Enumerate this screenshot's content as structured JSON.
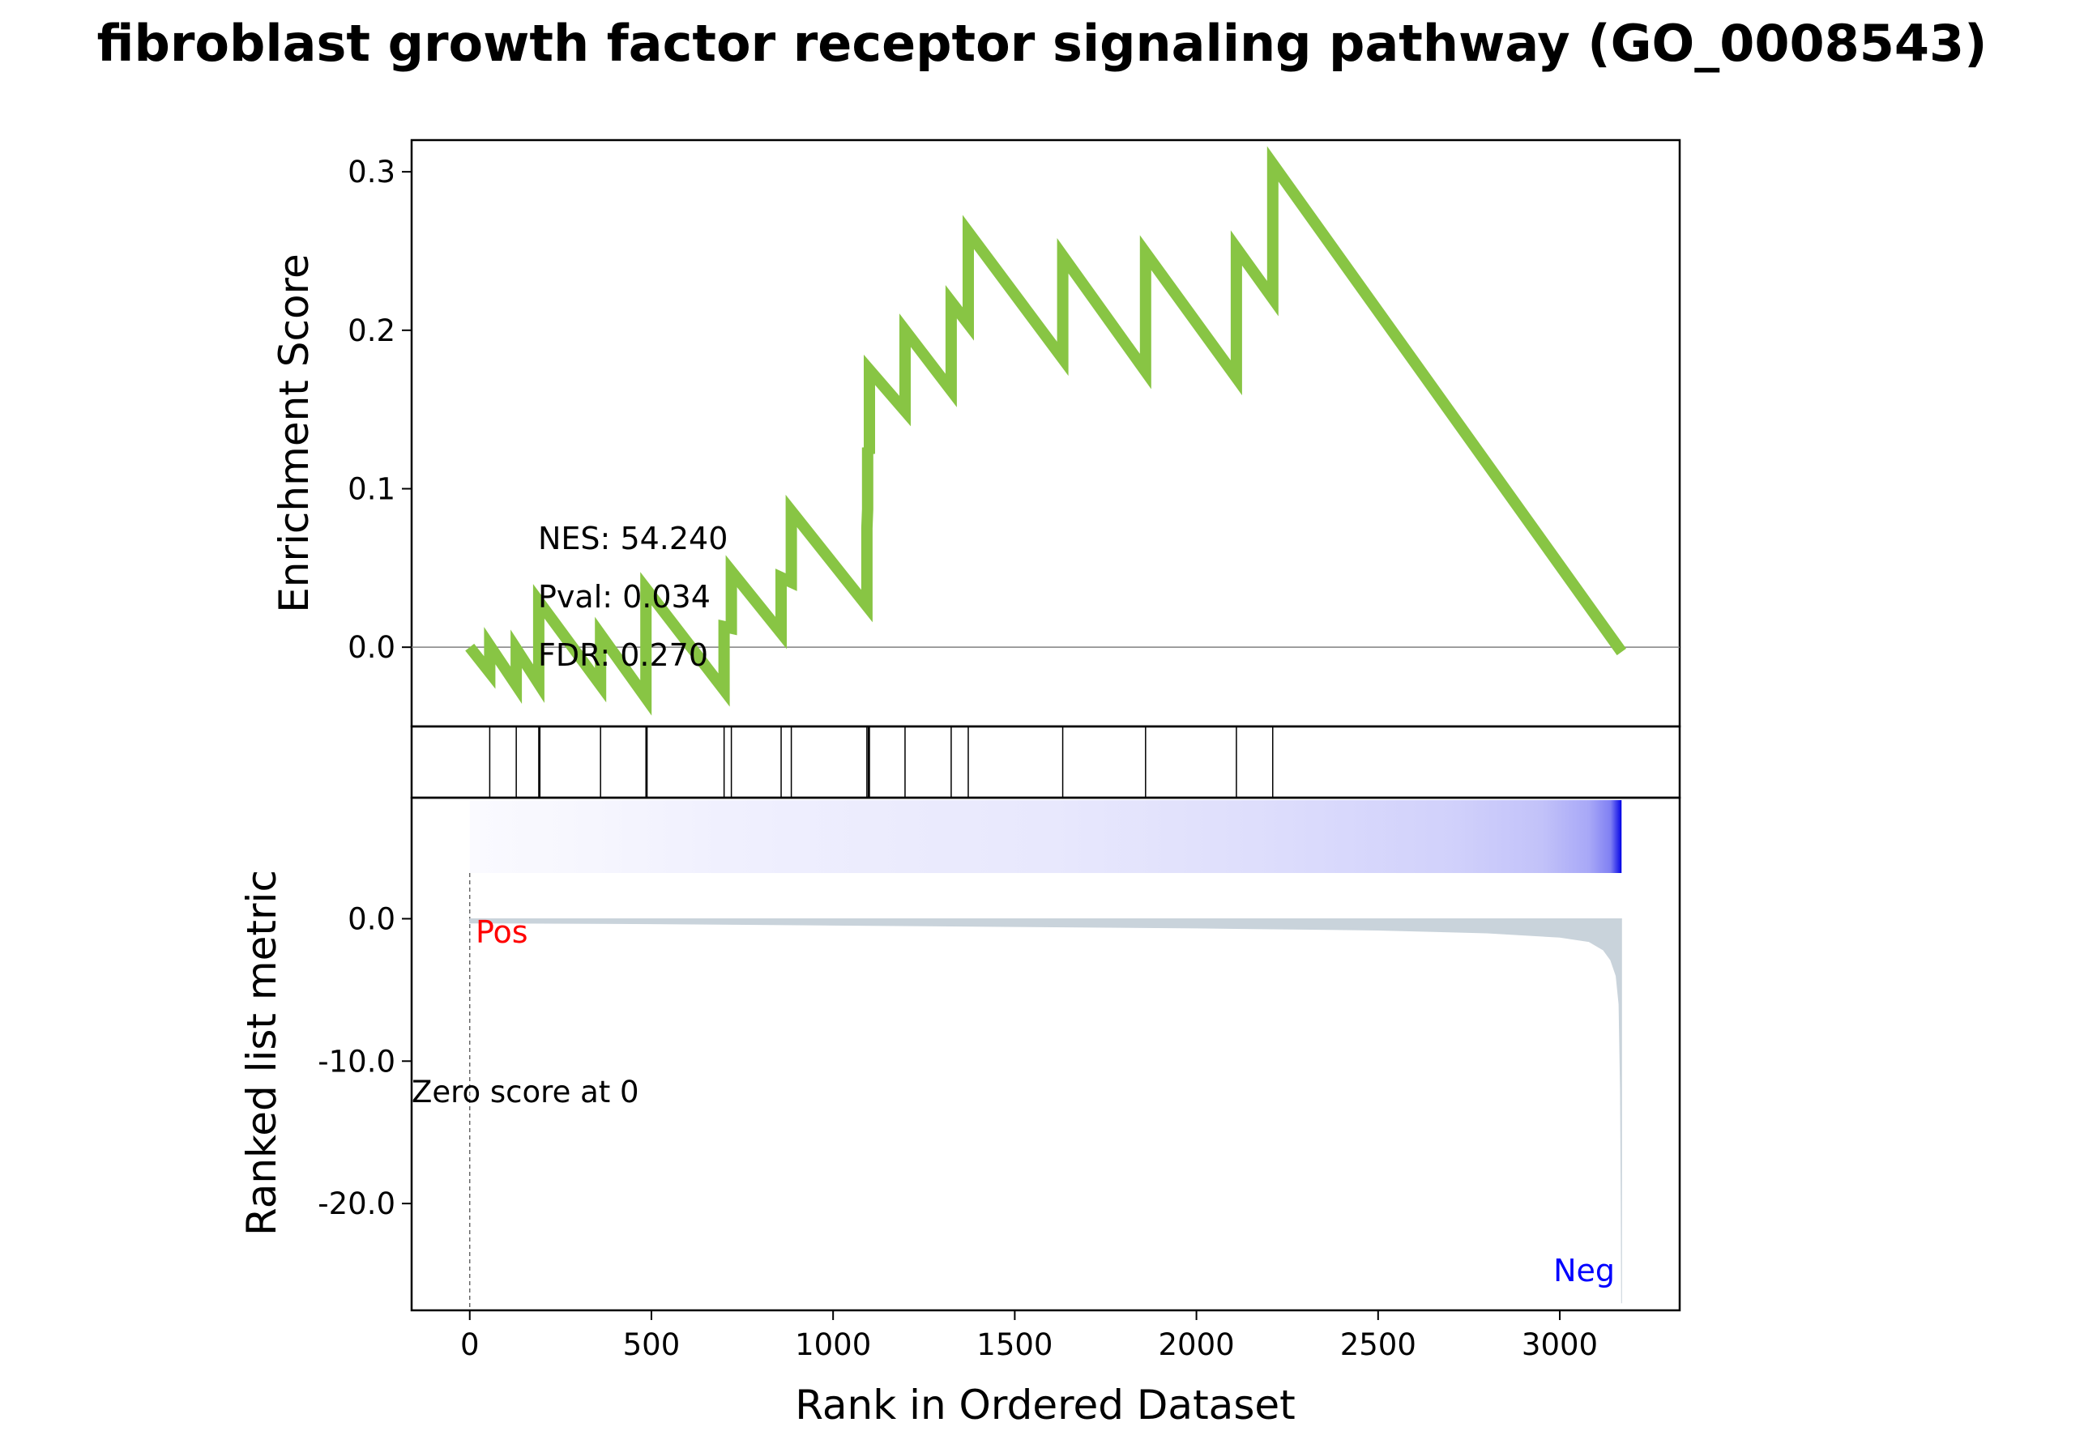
{
  "title": "fibroblast growth factor receptor signaling pathway (GO_0008543)",
  "colors": {
    "es_line": "#88C544",
    "hit_line": "#000000",
    "metric_fill": "#C9D3DB",
    "pos_label": "#FF0000",
    "neg_label": "#0000FF",
    "heat_low": "#FFFFFF",
    "heat_high": "#0000E6"
  },
  "stats": {
    "nes": "NES: 54.240",
    "pval": "Pval: 0.034",
    "fdr": "FDR: 0.270"
  },
  "chart_data": [
    {
      "type": "line",
      "panel": "enrichment-score",
      "ylabel": "Enrichment Score",
      "xlim": [
        -160,
        3330
      ],
      "ylim": [
        -0.05,
        0.32
      ],
      "yticks": [
        0.0,
        0.1,
        0.2,
        0.3
      ],
      "ytick_labels": [
        "0.0",
        "0.1",
        "0.2",
        "0.3"
      ],
      "zero_line": 0.0,
      "points": [
        [
          0,
          0.0
        ],
        [
          55,
          -0.016
        ],
        [
          55,
          0.001
        ],
        [
          128,
          -0.024
        ],
        [
          128,
          -0.001
        ],
        [
          190,
          -0.023
        ],
        [
          190,
          0.029
        ],
        [
          360,
          -0.024
        ],
        [
          360,
          0.008
        ],
        [
          485,
          -0.032
        ],
        [
          485,
          0.037
        ],
        [
          700,
          -0.027
        ],
        [
          700,
          0.013
        ],
        [
          720,
          0.012
        ],
        [
          720,
          0.048
        ],
        [
          857,
          0.009
        ],
        [
          857,
          0.044
        ],
        [
          885,
          0.041
        ],
        [
          885,
          0.086
        ],
        [
          1093,
          0.026
        ],
        [
          1093,
          0.075
        ],
        [
          1095,
          0.087
        ],
        [
          1095,
          0.126
        ],
        [
          1100,
          0.122
        ],
        [
          1100,
          0.175
        ],
        [
          1198,
          0.149
        ],
        [
          1198,
          0.2
        ],
        [
          1325,
          0.162
        ],
        [
          1325,
          0.218
        ],
        [
          1372,
          0.204
        ],
        [
          1372,
          0.262
        ],
        [
          1632,
          0.182
        ],
        [
          1632,
          0.247
        ],
        [
          1860,
          0.174
        ],
        [
          1860,
          0.249
        ],
        [
          2110,
          0.17
        ],
        [
          2110,
          0.252
        ],
        [
          2210,
          0.22
        ],
        [
          2210,
          0.305
        ],
        [
          3170,
          -0.003
        ]
      ]
    },
    {
      "type": "hits",
      "panel": "gene-set-hits",
      "positions": [
        55,
        128,
        190,
        193,
        360,
        485,
        488,
        700,
        720,
        857,
        885,
        1093,
        1097,
        1100,
        1198,
        1325,
        1372,
        1632,
        1860,
        2110,
        2210
      ]
    },
    {
      "type": "area",
      "panel": "ranked-list-metric",
      "ylabel": "Ranked list metric",
      "xlabel": "Rank in Ordered Dataset",
      "xlim": [
        -160,
        3330
      ],
      "ylim": [
        -27.5,
        8.5
      ],
      "xticks": [
        0,
        500,
        1000,
        1500,
        2000,
        2500,
        3000
      ],
      "xtick_labels": [
        "0",
        "500",
        "1000",
        "1500",
        "2000",
        "2500",
        "3000"
      ],
      "yticks": [
        0.0,
        -10.0,
        -20.0
      ],
      "ytick_labels": [
        "0.0",
        "-10.0",
        "-20.0"
      ],
      "n_ranked": 3170,
      "metric_curve": [
        [
          0,
          -0.3
        ],
        [
          500,
          -0.35
        ],
        [
          1000,
          -0.45
        ],
        [
          1500,
          -0.55
        ],
        [
          2000,
          -0.65
        ],
        [
          2500,
          -0.8
        ],
        [
          2800,
          -1.0
        ],
        [
          3000,
          -1.3
        ],
        [
          3080,
          -1.6
        ],
        [
          3120,
          -2.2
        ],
        [
          3140,
          -2.9
        ],
        [
          3155,
          -4.0
        ],
        [
          3163,
          -6.0
        ],
        [
          3167,
          -12.0
        ],
        [
          3169,
          -20.0
        ],
        [
          3170,
          -27.0
        ]
      ],
      "heatmap_intensity": [
        [
          0,
          0.02
        ],
        [
          270,
          0.03
        ],
        [
          700,
          0.06
        ],
        [
          1200,
          0.08
        ],
        [
          1600,
          0.09
        ],
        [
          2160,
          0.13
        ],
        [
          2700,
          0.18
        ],
        [
          2950,
          0.24
        ],
        [
          3080,
          0.34
        ],
        [
          3140,
          0.5
        ],
        [
          3165,
          0.9
        ],
        [
          3170,
          1.0
        ]
      ],
      "zero_cross_label": "Zero score at 0",
      "pos_label": "Pos",
      "neg_label": "Neg"
    }
  ]
}
